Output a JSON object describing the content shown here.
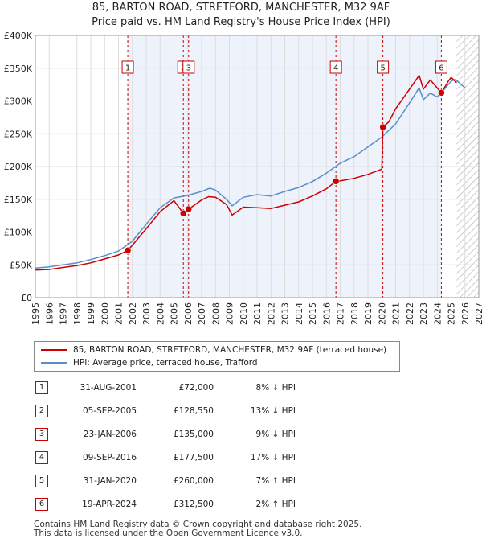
{
  "title_line1": "85, BARTON ROAD, STRETFORD, MANCHESTER, M32 9AF",
  "title_line2": "Price paid vs. HM Land Registry's House Price Index (HPI)",
  "colors": {
    "property": "#cc0000",
    "hpi": "#5b8ec9",
    "shade": "#eef2fb",
    "grid": "#dddddd",
    "marker_line": "#cc0000"
  },
  "chart_data": {
    "type": "line",
    "xlim": [
      1995,
      2027
    ],
    "ylim": [
      0,
      400000
    ],
    "y_ticks": [
      0,
      50000,
      100000,
      150000,
      200000,
      250000,
      300000,
      350000,
      400000
    ],
    "y_tick_labels": [
      "£0",
      "£50K",
      "£100K",
      "£150K",
      "£200K",
      "£250K",
      "£300K",
      "£350K",
      "£400K"
    ],
    "x_ticks": [
      1995,
      1996,
      1997,
      1998,
      1999,
      2000,
      2001,
      2002,
      2003,
      2004,
      2005,
      2006,
      2007,
      2008,
      2009,
      2010,
      2011,
      2012,
      2013,
      2014,
      2015,
      2016,
      2017,
      2018,
      2019,
      2020,
      2021,
      2022,
      2023,
      2024,
      2025,
      2026,
      2027
    ],
    "x_tick_labels": [
      "1995",
      "1996",
      "1997",
      "1998",
      "1999",
      "2000",
      "2001",
      "2002",
      "2003",
      "2004",
      "2005",
      "2006",
      "2007",
      "2008",
      "2009",
      "2010",
      "2011",
      "2012",
      "2013",
      "2014",
      "2015",
      "2016",
      "2017",
      "2018",
      "2019",
      "2020",
      "2021",
      "2022",
      "2023",
      "2024",
      "2025",
      "2026",
      "2027"
    ],
    "shaded_start": 2001.67,
    "forecast_start": 2025.4,
    "series": [
      {
        "name": "85, BARTON ROAD, STRETFORD, MANCHESTER, M32 9AF (terraced house)",
        "x": [
          1995,
          1996,
          1997,
          1998,
          1999,
          2000,
          2001,
          2001.67,
          2002,
          2003,
          2004,
          2005,
          2005.68,
          2006.06,
          2007,
          2007.5,
          2008,
          2008.8,
          2009.2,
          2010,
          2011,
          2012,
          2013,
          2014,
          2015,
          2016,
          2016.69,
          2017,
          2018,
          2019,
          2020.0,
          2020.08,
          2020.5,
          2021,
          2022,
          2022.7,
          2023,
          2023.5,
          2024.3,
          2024.8,
          2025.0,
          2025.4
        ],
        "values": [
          42000,
          43000,
          46000,
          49000,
          53000,
          59000,
          65000,
          72000,
          80000,
          105000,
          131000,
          148000,
          128550,
          135000,
          149000,
          154000,
          153000,
          142000,
          126000,
          138000,
          137000,
          136000,
          141000,
          146000,
          155000,
          166000,
          177500,
          178000,
          182000,
          188000,
          196000,
          260000,
          268000,
          288000,
          318000,
          339000,
          318000,
          332000,
          312500,
          330000,
          336000,
          328000
        ]
      },
      {
        "name": "HPI: Average price, terraced house, Trafford",
        "x": [
          1995,
          1996,
          1997,
          1998,
          1999,
          2000,
          2001,
          2002,
          2003,
          2004,
          2005,
          2006,
          2007,
          2007.6,
          2008,
          2008.8,
          2009.2,
          2010,
          2011,
          2012,
          2013,
          2014,
          2015,
          2016,
          2017,
          2018,
          2019,
          2020,
          2021,
          2022,
          2022.7,
          2023,
          2023.5,
          2024,
          2024.6,
          2025.0,
          2025.3,
          2026.0
        ],
        "values": [
          45000,
          47000,
          50000,
          53000,
          58000,
          64000,
          71000,
          86000,
          112000,
          137000,
          152000,
          156000,
          162000,
          167000,
          164000,
          150000,
          140000,
          153000,
          157000,
          155000,
          162000,
          168000,
          177000,
          190000,
          205000,
          215000,
          230000,
          245000,
          265000,
          297000,
          320000,
          302000,
          312000,
          306000,
          320000,
          330000,
          333000,
          320000
        ]
      }
    ],
    "sales": [
      {
        "n": "1",
        "x": 2001.67,
        "value": 72000
      },
      {
        "n": "2",
        "x": 2005.68,
        "value": 128550
      },
      {
        "n": "3",
        "x": 2006.06,
        "value": 135000
      },
      {
        "n": "4",
        "x": 2016.69,
        "value": 177500
      },
      {
        "n": "5",
        "x": 2020.08,
        "value": 260000
      },
      {
        "n": "6",
        "x": 2024.3,
        "value": 312500
      }
    ]
  },
  "legend": {
    "property": "85, BARTON ROAD, STRETFORD, MANCHESTER, M32 9AF (terraced house)",
    "hpi": "HPI: Average price, terraced house, Trafford"
  },
  "table": [
    {
      "n": "1",
      "date": "31-AUG-2001",
      "price": "£72,000",
      "hpi": "8% ↓ HPI"
    },
    {
      "n": "2",
      "date": "05-SEP-2005",
      "price": "£128,550",
      "hpi": "13% ↓ HPI"
    },
    {
      "n": "3",
      "date": "23-JAN-2006",
      "price": "£135,000",
      "hpi": "9% ↓ HPI"
    },
    {
      "n": "4",
      "date": "09-SEP-2016",
      "price": "£177,500",
      "hpi": "17% ↓ HPI"
    },
    {
      "n": "5",
      "date": "31-JAN-2020",
      "price": "£260,000",
      "hpi": "7% ↑ HPI"
    },
    {
      "n": "6",
      "date": "19-APR-2024",
      "price": "£312,500",
      "hpi": "2% ↑ HPI"
    }
  ],
  "footer_line1": "Contains HM Land Registry data © Crown copyright and database right 2025.",
  "footer_line2": "This data is licensed under the Open Government Licence v3.0."
}
